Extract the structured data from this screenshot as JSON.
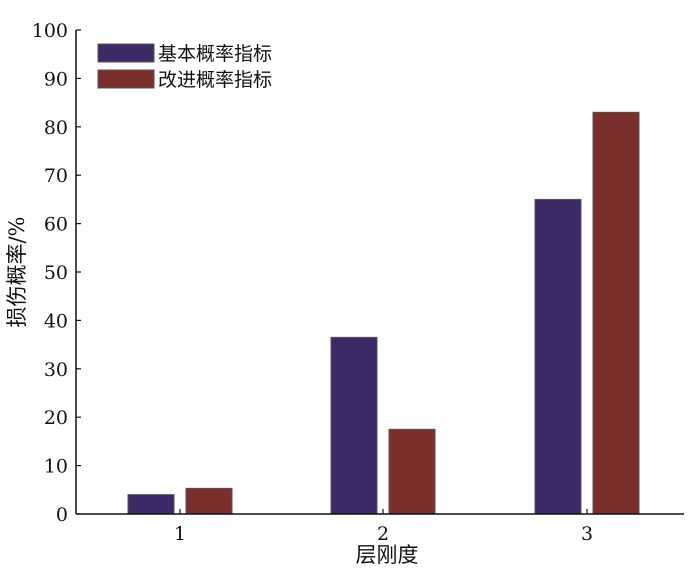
{
  "chart_data": {
    "type": "bar",
    "categories": [
      "1",
      "2",
      "3"
    ],
    "series": [
      {
        "name": "基本概率指标",
        "values": [
          4,
          36.5,
          65
        ],
        "color": "#3d2a66"
      },
      {
        "name": "改进概率指标",
        "values": [
          5.3,
          17.5,
          83
        ],
        "color": "#7a2f2c"
      }
    ],
    "xlabel": "层刚度",
    "ylabel": "损伤概率/%",
    "ylim": [
      0,
      100
    ],
    "yticks": [
      0,
      10,
      20,
      30,
      40,
      50,
      60,
      70,
      80,
      90,
      100
    ],
    "grid": false,
    "legend_position": "top-left"
  }
}
